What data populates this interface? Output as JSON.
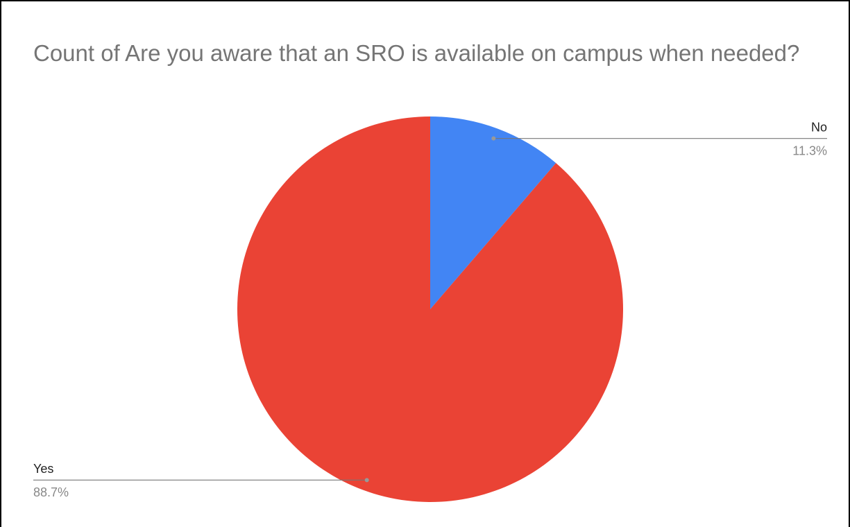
{
  "chart_data": {
    "type": "pie",
    "title": "Count of Are you aware that an SRO is available on campus when needed?",
    "categories": [
      "No",
      "Yes"
    ],
    "values": [
      11.3,
      88.7
    ],
    "value_labels": [
      "11.3%",
      "88.7%"
    ],
    "colors": [
      "#4285f4",
      "#ea4335"
    ]
  }
}
